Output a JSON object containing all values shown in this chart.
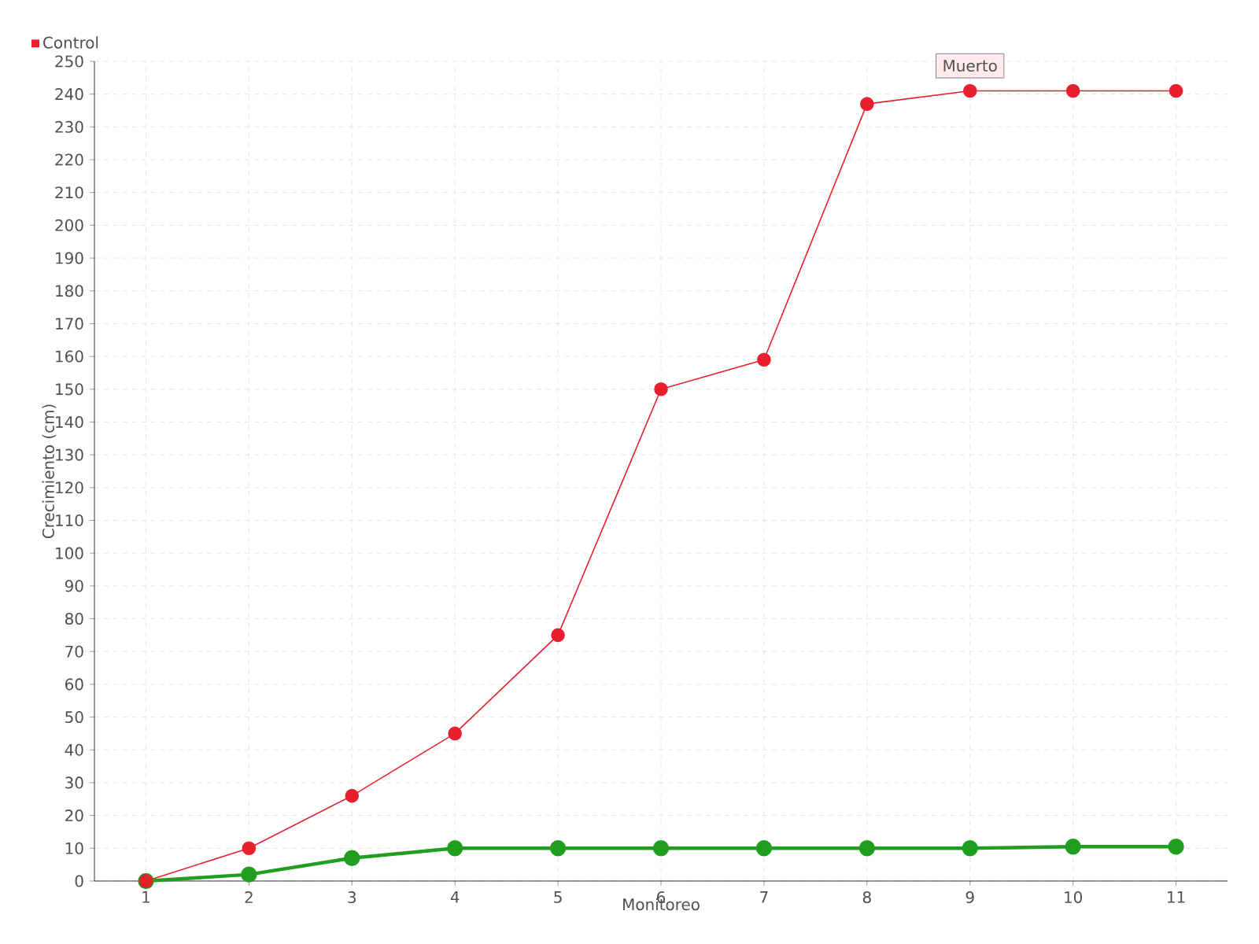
{
  "chart_data": {
    "type": "line",
    "xlabel": "Monitoreo",
    "ylabel": "Crecimiento (cm)",
    "categories": [
      "1",
      "2",
      "3",
      "4",
      "5",
      "6",
      "7",
      "8",
      "9",
      "10",
      "11"
    ],
    "series": [
      {
        "color": "#1f9e1f",
        "values": [
          0,
          2,
          7,
          10,
          10,
          10,
          10,
          10,
          10,
          10.5,
          10.5
        ]
      },
      {
        "name": "Control",
        "color": "#e8202e",
        "values": [
          0,
          10,
          26,
          45,
          75,
          150,
          159,
          237,
          241,
          241,
          241
        ]
      }
    ],
    "ylim": [
      0,
      250
    ],
    "yticks": [
      0,
      10,
      20,
      30,
      40,
      50,
      60,
      70,
      80,
      90,
      100,
      110,
      120,
      130,
      140,
      150,
      160,
      170,
      180,
      190,
      200,
      210,
      220,
      230,
      240,
      250
    ],
    "annotations": [
      {
        "text": "Muerto",
        "x": "9",
        "y": 241
      }
    ],
    "grid": true,
    "legend": "top left",
    "marker": "circle",
    "line_style": "solid"
  }
}
